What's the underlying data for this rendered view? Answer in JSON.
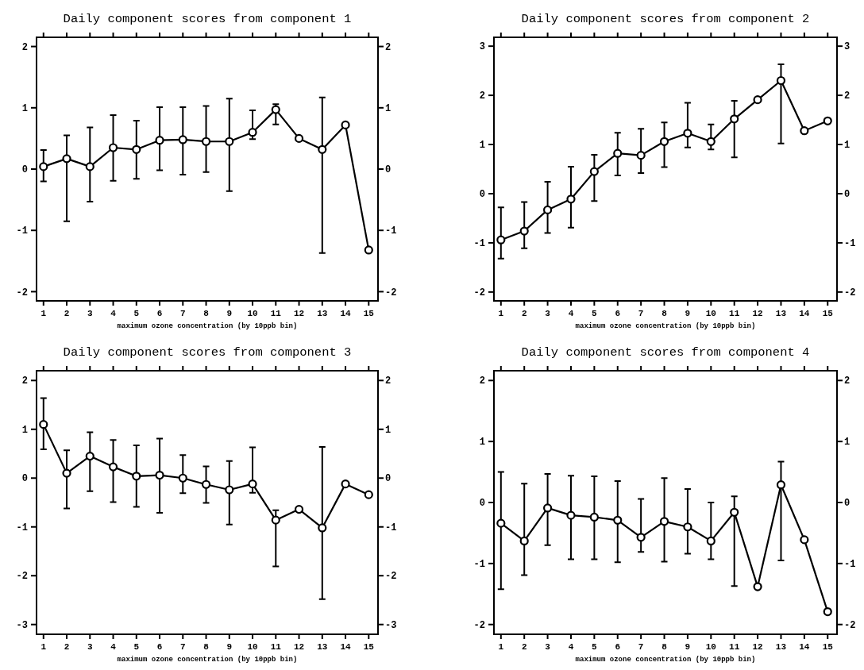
{
  "chart_data": [
    {
      "type": "line",
      "title": "Daily component scores from component 1",
      "xlabel": "maximum ozone concentration (by 10ppb bin)",
      "x": [
        1,
        2,
        3,
        4,
        5,
        6,
        7,
        8,
        9,
        10,
        11,
        12,
        13,
        14,
        15
      ],
      "xlim": [
        0.7,
        15.4
      ],
      "xticks": [
        1,
        2,
        3,
        4,
        5,
        6,
        7,
        8,
        9,
        10,
        11,
        12,
        13,
        14,
        15
      ],
      "ylim": [
        -2.15,
        2.15
      ],
      "yticks": [
        -2,
        -1,
        0,
        1,
        2
      ],
      "y2lim": [
        -2.15,
        2.15
      ],
      "y2ticks": [
        -2,
        -1,
        0,
        1,
        2
      ],
      "marker": "circle",
      "grid": false,
      "series": [
        {
          "color": "#000000",
          "values": [
            0.04,
            0.17,
            0.04,
            0.35,
            0.32,
            0.47,
            0.48,
            0.45,
            0.45,
            0.6,
            0.97,
            0.5,
            0.32,
            0.72,
            -1.32
          ],
          "errors": [
            [
              -0.2,
              0.31
            ],
            [
              -0.85,
              0.55
            ],
            [
              -0.53,
              0.68
            ],
            [
              -0.19,
              0.88
            ],
            [
              -0.16,
              0.79
            ],
            [
              -0.02,
              1.01
            ],
            [
              -0.09,
              1.01
            ],
            [
              -0.05,
              1.03
            ],
            [
              -0.36,
              1.15
            ],
            [
              0.49,
              0.96
            ],
            [
              0.73,
              1.06
            ],
            null,
            [
              -1.37,
              1.17
            ],
            null,
            null
          ]
        }
      ]
    },
    {
      "type": "line",
      "title": "Daily component scores from component 2",
      "xlabel": "maximum ozone concentration (by 10ppb bin)",
      "x": [
        1,
        2,
        3,
        4,
        5,
        6,
        7,
        8,
        9,
        10,
        11,
        12,
        13,
        14,
        15
      ],
      "xlim": [
        0.7,
        15.4
      ],
      "xticks": [
        1,
        2,
        3,
        4,
        5,
        6,
        7,
        8,
        9,
        10,
        11,
        12,
        13,
        14,
        15
      ],
      "ylim": [
        -2.18,
        3.18
      ],
      "yticks": [
        -2,
        -1,
        0,
        1,
        2,
        3
      ],
      "y2lim": [
        -2.18,
        3.18
      ],
      "y2ticks": [
        -2,
        -1,
        0,
        1,
        2,
        3
      ],
      "marker": "circle",
      "grid": false,
      "series": [
        {
          "color": "#000000",
          "values": [
            -0.94,
            -0.76,
            -0.33,
            -0.11,
            0.45,
            0.82,
            0.78,
            1.06,
            1.23,
            1.06,
            1.52,
            1.91,
            2.3,
            1.28,
            1.48
          ],
          "errors": [
            [
              -1.32,
              -0.28
            ],
            [
              -1.11,
              -0.17
            ],
            [
              -0.8,
              0.24
            ],
            [
              -0.69,
              0.55
            ],
            [
              -0.15,
              0.79
            ],
            [
              0.37,
              1.24
            ],
            [
              0.42,
              1.32
            ],
            [
              0.54,
              1.45
            ],
            [
              0.94,
              1.85
            ],
            [
              0.9,
              1.41
            ],
            [
              0.74,
              1.89
            ],
            null,
            [
              1.02,
              2.63
            ],
            null,
            null
          ]
        }
      ]
    },
    {
      "type": "line",
      "title": "Daily component scores from component 3",
      "xlabel": "maximum ozone concentration (by 10ppb bin)",
      "x": [
        1,
        2,
        3,
        4,
        5,
        6,
        7,
        8,
        9,
        10,
        11,
        12,
        13,
        14,
        15
      ],
      "xlim": [
        0.7,
        15.4
      ],
      "xticks": [
        1,
        2,
        3,
        4,
        5,
        6,
        7,
        8,
        9,
        10,
        11,
        12,
        13,
        14,
        15
      ],
      "ylim": [
        -3.2,
        2.2
      ],
      "yticks": [
        -3,
        -2,
        -1,
        0,
        1,
        2
      ],
      "y2lim": [
        -3.2,
        2.2
      ],
      "y2ticks": [
        -3,
        -2,
        -1,
        0,
        1,
        2
      ],
      "marker": "circle",
      "grid": false,
      "series": [
        {
          "color": "#000000",
          "values": [
            1.1,
            0.1,
            0.45,
            0.23,
            0.04,
            0.06,
            0,
            -0.13,
            -0.24,
            -0.12,
            -0.86,
            -0.64,
            -1.02,
            -0.12,
            -0.34
          ],
          "errors": [
            [
              0.59,
              1.64
            ],
            [
              -0.62,
              0.57
            ],
            [
              -0.27,
              0.94
            ],
            [
              -0.49,
              0.78
            ],
            [
              -0.59,
              0.67
            ],
            [
              -0.71,
              0.81
            ],
            [
              -0.31,
              0.47
            ],
            [
              -0.51,
              0.24
            ],
            [
              -0.95,
              0.35
            ],
            [
              -0.3,
              0.63
            ],
            [
              -1.81,
              -0.66
            ],
            null,
            [
              -2.48,
              0.64
            ],
            null,
            null
          ]
        }
      ]
    },
    {
      "type": "line",
      "title": "Daily component scores from component 4",
      "xlabel": "maximum ozone concentration (by 10ppb bin)",
      "x": [
        1,
        2,
        3,
        4,
        5,
        6,
        7,
        8,
        9,
        10,
        11,
        12,
        13,
        14,
        15
      ],
      "xlim": [
        0.7,
        15.4
      ],
      "xticks": [
        1,
        2,
        3,
        4,
        5,
        6,
        7,
        8,
        9,
        10,
        11,
        12,
        13,
        14,
        15
      ],
      "ylim": [
        -2.16,
        2.16
      ],
      "yticks": [
        -2,
        -1,
        0,
        1,
        2
      ],
      "y2lim": [
        -2.16,
        2.16
      ],
      "y2ticks": [
        -2,
        -1,
        0,
        1,
        2
      ],
      "marker": "circle",
      "grid": false,
      "series": [
        {
          "color": "#000000",
          "values": [
            -0.34,
            -0.63,
            -0.09,
            -0.21,
            -0.24,
            -0.29,
            -0.57,
            -0.31,
            -0.4,
            -0.63,
            -0.16,
            -1.38,
            0.29,
            -0.61,
            -1.79
          ],
          "errors": [
            [
              -1.42,
              0.5
            ],
            [
              -1.19,
              0.31
            ],
            [
              -0.7,
              0.47
            ],
            [
              -0.93,
              0.44
            ],
            [
              -0.93,
              0.43
            ],
            [
              -0.98,
              0.35
            ],
            [
              -0.81,
              0.06
            ],
            [
              -0.97,
              0.4
            ],
            [
              -0.84,
              0.22
            ],
            [
              -0.93,
              0
            ],
            [
              -1.37,
              0.1
            ],
            null,
            [
              -0.95,
              0.67
            ],
            null,
            null
          ]
        }
      ]
    }
  ]
}
